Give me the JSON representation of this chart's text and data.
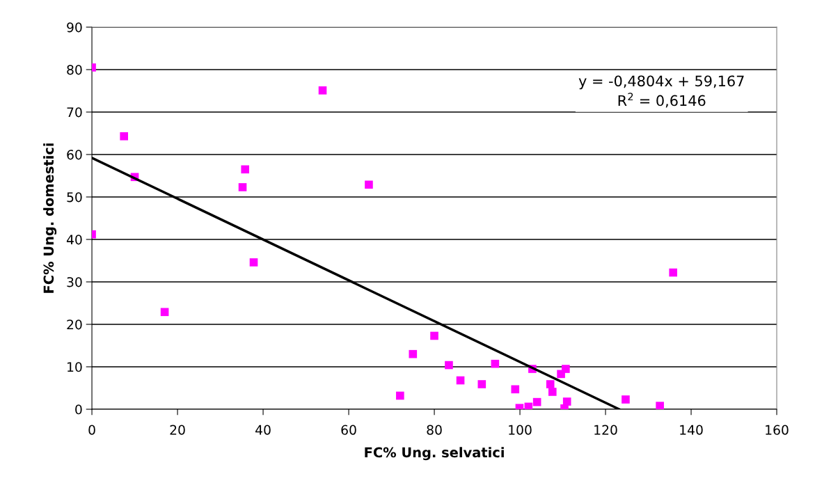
{
  "chart_data": {
    "type": "scatter",
    "xlabel": "FC% Ung. selvatici",
    "ylabel": "FC% Ung. domestici",
    "series": [
      {
        "color": "#ff00ff",
        "marker": "square",
        "x": [
          0,
          7.5,
          10,
          0,
          17,
          35.2,
          35.8,
          37.8,
          53.9,
          64.7,
          72,
          75,
          80,
          83.4,
          86.1,
          91.1,
          94.2,
          98.9,
          99.9,
          102,
          102.9,
          104,
          107.1,
          107.6,
          109.6,
          110.7,
          110.4,
          111,
          124.7,
          132.7,
          135.8
        ],
        "values": [
          80.5,
          64.3,
          54.7,
          41.2,
          22.9,
          52.3,
          56.5,
          34.6,
          75.1,
          52.9,
          3.2,
          13,
          17.3,
          10.4,
          6.8,
          5.9,
          10.7,
          4.7,
          0.3,
          0.6,
          9.5,
          1.7,
          5.9,
          4.1,
          8.3,
          9.5,
          0.2,
          1.8,
          2.3,
          0.8,
          32.2
        ]
      },
      {
        "type": "line",
        "color": "#000000",
        "marker": "none",
        "x": [
          0,
          123.2
        ],
        "values": [
          59.2,
          0
        ]
      }
    ],
    "annotations": [
      "y = -0,4804x + 59,167\nR$^{2}$ = 0,6146"
    ],
    "xlim": [
      0,
      160
    ],
    "xticks": [
      0,
      20,
      40,
      60,
      80,
      100,
      120,
      140,
      160
    ],
    "ylim": [
      0,
      90
    ],
    "yticks": [
      0,
      10,
      20,
      30,
      40,
      50,
      60,
      70,
      80,
      90
    ],
    "grid": "y",
    "legend": false
  }
}
